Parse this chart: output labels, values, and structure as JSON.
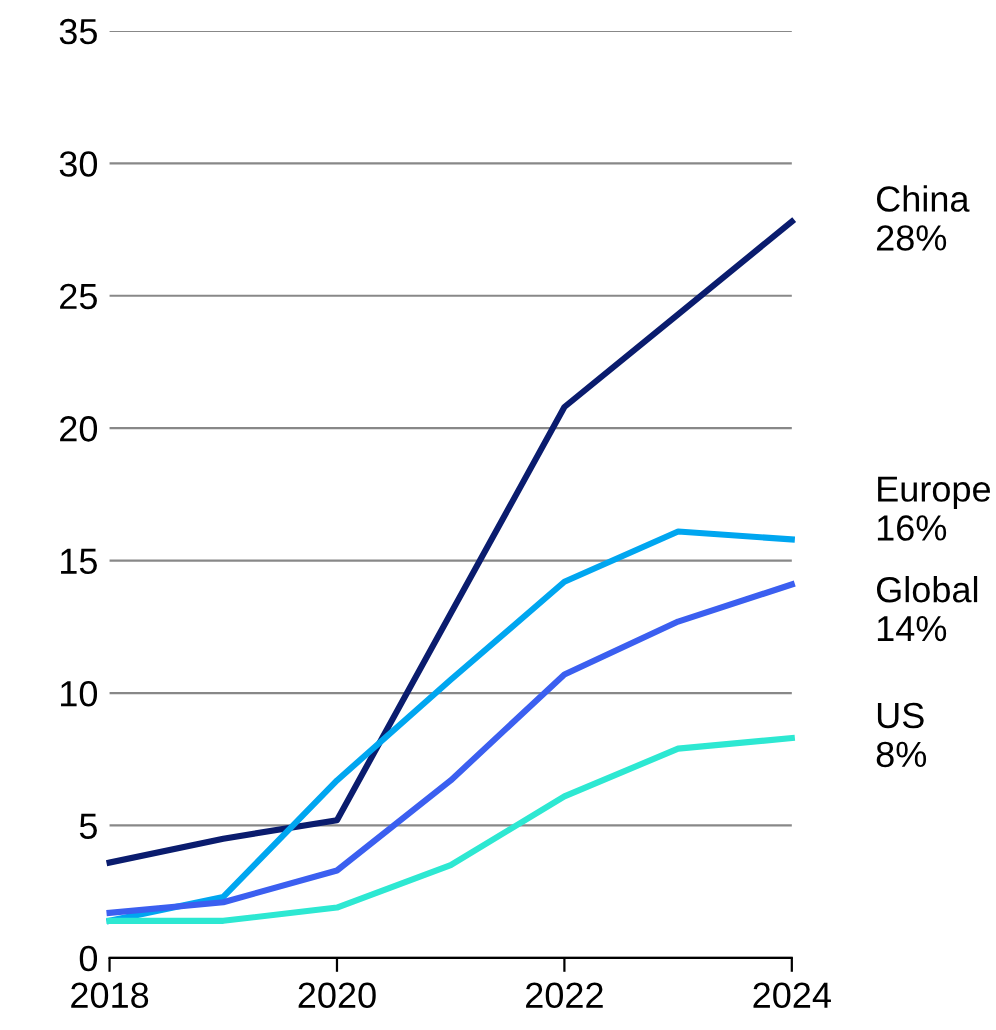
{
  "chart_data": {
    "type": "line",
    "x": [
      2018,
      2019,
      2020,
      2021,
      2022,
      2023,
      2024
    ],
    "series": [
      {
        "name": "China",
        "color": "#0a1c6e",
        "values": [
          3.6,
          4.5,
          5.2,
          13.0,
          20.8,
          24.3,
          27.8
        ]
      },
      {
        "name": "Europe",
        "color": "#00a6f0",
        "values": [
          1.4,
          2.3,
          6.7,
          10.5,
          14.2,
          16.1,
          15.8
        ]
      },
      {
        "name": "Global",
        "color": "#3b5ff0",
        "values": [
          1.7,
          2.1,
          3.3,
          6.7,
          10.7,
          12.7,
          14.1
        ]
      },
      {
        "name": "US",
        "color": "#2de8d2",
        "values": [
          1.4,
          1.4,
          1.9,
          3.5,
          6.1,
          7.9,
          8.3
        ]
      }
    ],
    "annotations": [
      "28%",
      "16%",
      "14%",
      "8%"
    ],
    "xlim": [
      2018,
      2024
    ],
    "xticks": [
      2018,
      2020,
      2022,
      2024
    ],
    "ylim": [
      0,
      35
    ],
    "yticks": [
      0,
      5,
      10,
      15,
      20,
      25,
      30,
      35
    ],
    "grid": "y",
    "legend": false,
    "marker": "none",
    "line_style": "solid"
  }
}
